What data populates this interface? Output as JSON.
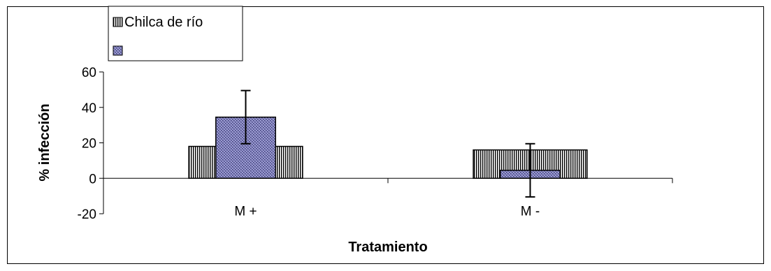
{
  "chart_data": {
    "type": "bar",
    "categories": [
      "M +",
      "M -"
    ],
    "series": [
      {
        "name": "Chilca de río",
        "values": [
          18,
          16
        ],
        "pattern": "vertical-stripes",
        "color": "#000000"
      },
      {
        "name": "",
        "values": [
          34.5,
          4.5
        ],
        "errors": [
          15,
          15
        ],
        "pattern": "crosshatch",
        "color": "#6b6ba8"
      }
    ],
    "xlabel": "Tratamiento",
    "ylabel": "% infección",
    "ylim": [
      -20,
      60
    ],
    "yticks": [
      "-20",
      "0",
      "20",
      "40",
      "60"
    ],
    "grid": false,
    "legend_position": "top-left"
  }
}
